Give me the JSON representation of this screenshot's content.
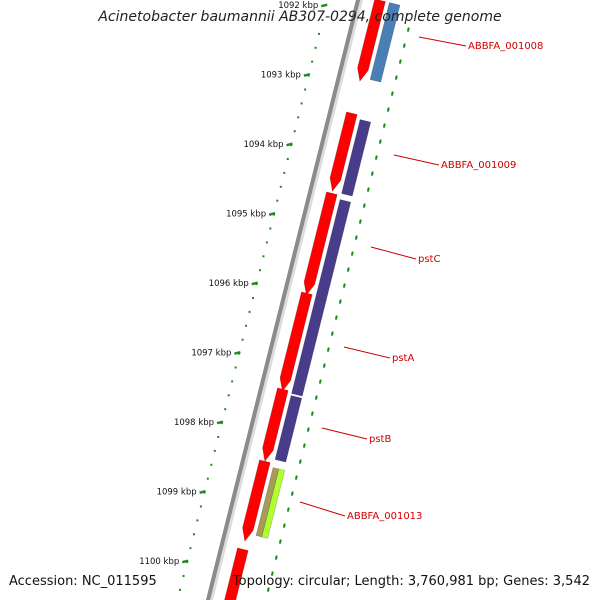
{
  "title": "Acinetobacter baumannii AB307-0294, complete genome",
  "footer": {
    "accession": "Accession: NC_011595",
    "summary": "Topology: circular; Length: 3,760,981 bp; Genes: 3,542"
  },
  "scale_labels": [
    "1092 kbp",
    "1093 kbp",
    "1094 kbp",
    "1095 kbp",
    "1096 kbp",
    "1097 kbp",
    "1098 kbp",
    "1099 kbp",
    "1100 kbp"
  ],
  "gene_labels": [
    "ABBFA_001008",
    "ABBFA_001009",
    "pstC",
    "pstA",
    "pstB",
    "ABBFA_001013"
  ],
  "colors": {
    "backbone": "#8a8a8a",
    "forward_cds": "#ff0000",
    "blast_blue": "#4a7fb5",
    "blast_purple": "#483d8b",
    "blast_olive": "#a89a5a",
    "blast_lime": "#b0ff30",
    "tick_green": "#1f8a1f",
    "label_red": "#cc0000"
  }
}
